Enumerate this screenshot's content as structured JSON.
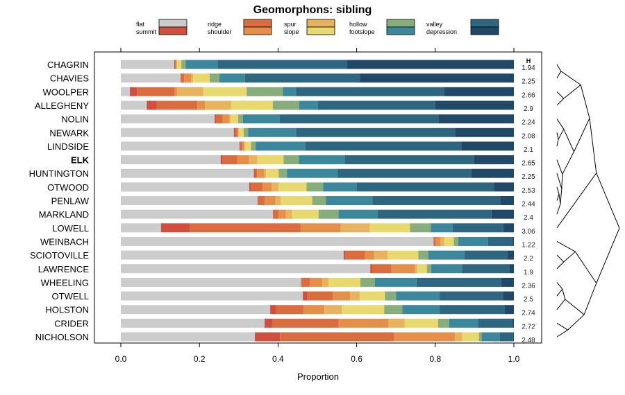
{
  "chart_data": {
    "type": "bar",
    "orientation": "horizontal",
    "stacked": true,
    "title": "Geomorphons: sibling",
    "xlabel": "Proportion",
    "ylabel": "",
    "xlim": [
      0,
      1
    ],
    "x_ticks": [
      "0.0",
      "0.2",
      "0.4",
      "0.6",
      "0.8",
      "1.0"
    ],
    "x_tick_values": [
      0,
      0.2,
      0.4,
      0.6,
      0.8,
      1.0
    ],
    "grid": false,
    "legend_position": "top",
    "legend": [
      {
        "name": "flat",
        "color": "#CCCCCC"
      },
      {
        "name": "summit",
        "color": "#D05040"
      },
      {
        "name": "ridge",
        "color": "#DA6D40"
      },
      {
        "name": "shoulder",
        "color": "#E48F4A"
      },
      {
        "name": "spur",
        "color": "#E8B35E"
      },
      {
        "name": "slope",
        "color": "#E8D870"
      },
      {
        "name": "hollow",
        "color": "#88AD7C"
      },
      {
        "name": "footslope",
        "color": "#3D879C"
      },
      {
        "name": "valley",
        "color": "#2E6680"
      },
      {
        "name": "depression",
        "color": "#224868"
      }
    ],
    "h_header": "H",
    "highlight_category": "ELK",
    "categories": [
      "CHAGRIN",
      "CHAVIES",
      "WOOLPER",
      "ALLEGHENY",
      "NOLIN",
      "NEWARK",
      "LINDSIDE",
      "ELK",
      "HUNTINGTON",
      "OTWOOD",
      "PENLAW",
      "MARKLAND",
      "LOWELL",
      "WEINBACH",
      "SCIOTOVILLE",
      "LAWRENCE",
      "WHEELING",
      "OTWELL",
      "HOLSTON",
      "CRIDER",
      "NICHOLSON"
    ],
    "H": [
      "1.94",
      "2.25",
      "2.66",
      "2.9",
      "2.24",
      "2.08",
      "2.1",
      "2.65",
      "2.25",
      "2.53",
      "2.44",
      "2.4",
      "3.06",
      "1.22",
      "2.2",
      "1.9",
      "2.36",
      "2.5",
      "2.74",
      "2.72",
      "2.48"
    ],
    "series": [
      {
        "name": "flat",
        "values": [
          0.136,
          0.152,
          0.023,
          0.066,
          0.239,
          0.288,
          0.302,
          0.254,
          0.339,
          0.327,
          0.348,
          0.387,
          0.102,
          0.797,
          0.567,
          0.634,
          0.459,
          0.463,
          0.38,
          0.366,
          0.341
        ]
      },
      {
        "name": "summit",
        "values": [
          0.002,
          0.0,
          0.018,
          0.025,
          0.004,
          0.004,
          0.002,
          0.005,
          0.004,
          0.004,
          0.002,
          0.0,
          0.074,
          0.001,
          0.005,
          0.005,
          0.001,
          0.012,
          0.014,
          0.021,
          0.064
        ]
      },
      {
        "name": "ridge",
        "values": [
          0.003,
          0.009,
          0.095,
          0.104,
          0.016,
          0.005,
          0.005,
          0.037,
          0.004,
          0.03,
          0.016,
          0.014,
          0.281,
          0.005,
          0.049,
          0.049,
          0.021,
          0.064,
          0.071,
          0.168,
          0.29
        ]
      },
      {
        "name": "shoulder",
        "values": [
          0.001,
          0.018,
          0.007,
          0.019,
          0.016,
          0.002,
          0.004,
          0.03,
          0.018,
          0.023,
          0.027,
          0.019,
          0.102,
          0.012,
          0.023,
          0.06,
          0.032,
          0.044,
          0.053,
          0.127,
          0.155
        ]
      },
      {
        "name": "spur",
        "values": [
          0.001,
          0.005,
          0.067,
          0.067,
          0.005,
          0.002,
          0.004,
          0.021,
          0.005,
          0.018,
          0.014,
          0.016,
          0.074,
          0.009,
          0.035,
          0.005,
          0.016,
          0.025,
          0.044,
          0.041,
          0.019
        ]
      },
      {
        "name": "slope",
        "values": [
          0.011,
          0.042,
          0.11,
          0.106,
          0.019,
          0.012,
          0.014,
          0.067,
          0.032,
          0.071,
          0.08,
          0.067,
          0.102,
          0.025,
          0.078,
          0.025,
          0.081,
          0.064,
          0.108,
          0.085,
          0.042
        ]
      },
      {
        "name": "hollow",
        "values": [
          0.011,
          0.025,
          0.092,
          0.067,
          0.012,
          0.011,
          0.012,
          0.039,
          0.021,
          0.042,
          0.035,
          0.051,
          0.053,
          0.011,
          0.025,
          0.011,
          0.037,
          0.028,
          0.046,
          0.028,
          0.007
        ]
      },
      {
        "name": "footslope",
        "values": [
          0.081,
          0.065,
          0.034,
          0.048,
          0.094,
          0.122,
          0.127,
          0.117,
          0.129,
          0.085,
          0.118,
          0.099,
          0.055,
          0.076,
          0.092,
          0.078,
          0.106,
          0.111,
          0.095,
          0.074,
          0.046
        ]
      },
      {
        "name": "valley",
        "values": [
          0.33,
          0.292,
          0.376,
          0.299,
          0.405,
          0.405,
          0.396,
          0.329,
          0.341,
          0.35,
          0.325,
          0.29,
          0.129,
          0.062,
          0.11,
          0.12,
          0.216,
          0.161,
          0.166,
          0.087,
          0.034
        ]
      },
      {
        "name": "depression",
        "values": [
          0.424,
          0.392,
          0.178,
          0.2,
          0.191,
          0.15,
          0.134,
          0.101,
          0.108,
          0.051,
          0.035,
          0.057,
          0.027,
          0.004,
          0.016,
          0.012,
          0.032,
          0.028,
          0.023,
          0.004,
          0.002
        ]
      }
    ],
    "dendrogram": {
      "description": "hierarchical clustering of soil series shown at right",
      "leaf_order": [
        "CHAGRIN",
        "CHAVIES",
        "WOOLPER",
        "ALLEGHENY",
        "NOLIN",
        "NEWARK",
        "LINDSIDE",
        "ELK",
        "HUNTINGTON",
        "OTWOOD",
        "PENLAW",
        "MARKLAND",
        "LOWELL",
        "WEINBACH",
        "SCIOTOVILLE",
        "LAWRENCE",
        "WHEELING",
        "OTWELL",
        "HOLSTON",
        "CRIDER",
        "NICHOLSON"
      ],
      "merges": [
        {
          "a": "CHAGRIN",
          "b": "CHAVIES",
          "height": 0.06
        },
        {
          "a": "WOOLPER",
          "b": "ALLEGHENY",
          "height": 0.1
        },
        {
          "a": "m1",
          "b": "m2",
          "height": 0.35
        },
        {
          "a": "NEWARK",
          "b": "LINDSIDE",
          "height": 0.02
        },
        {
          "a": "NOLIN",
          "b": "m4",
          "height": 0.1
        },
        {
          "a": "PENLAW",
          "b": "OTWOOD",
          "height": 0.03
        },
        {
          "a": "m6",
          "b": "MARKLAND",
          "height": 0.05
        },
        {
          "a": "HUNTINGTON",
          "b": "m7",
          "height": 0.07
        },
        {
          "a": "ELK",
          "b": "m8",
          "height": 0.08
        },
        {
          "a": "m5",
          "b": "m9",
          "height": 0.25
        },
        {
          "a": "m3",
          "b": "m10",
          "height": 0.48
        },
        {
          "a": "m11",
          "b": "LOWELL",
          "height": 0.58
        },
        {
          "a": "SCIOTOVILLE",
          "b": "LAWRENCE",
          "height": 0.1
        },
        {
          "a": "WEINBACH",
          "b": "m13",
          "height": 0.27
        },
        {
          "a": "WHEELING",
          "b": "OTWELL",
          "height": 0.08
        },
        {
          "a": "m15",
          "b": "HOLSTON",
          "height": 0.12
        },
        {
          "a": "CRIDER",
          "b": "NICHOLSON",
          "height": 0.16
        },
        {
          "a": "m16",
          "b": "m17",
          "height": 0.4
        },
        {
          "a": "m14",
          "b": "m18",
          "height": 0.58
        },
        {
          "a": "m12",
          "b": "m19",
          "height": 0.92
        }
      ]
    }
  }
}
